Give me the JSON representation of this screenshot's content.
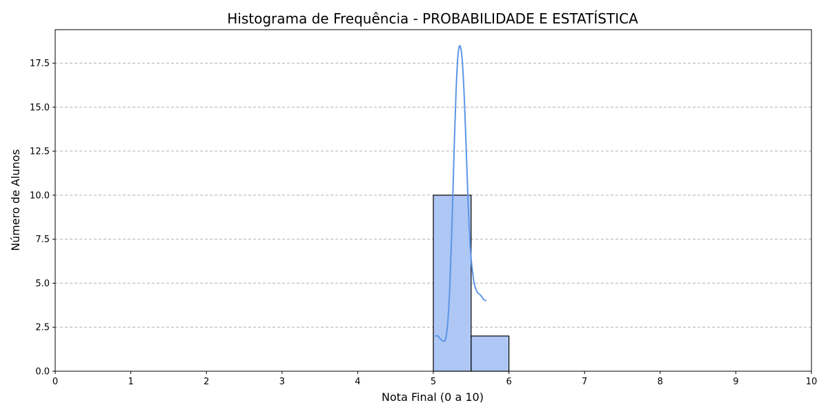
{
  "chart_data": {
    "type": "bar",
    "title": "Histograma de Frequência - PROBABILIDADE E ESTATÍSTICA",
    "xlabel": "Nota Final (0 a 10)",
    "ylabel": "Número de Alunos",
    "xlim": [
      0,
      10
    ],
    "ylim": [
      0,
      19.4
    ],
    "xticks": [
      "0",
      "1",
      "2",
      "3",
      "4",
      "5",
      "6",
      "7",
      "8",
      "9",
      "10"
    ],
    "yticks": [
      "0.0",
      "2.5",
      "5.0",
      "7.5",
      "10.0",
      "12.5",
      "15.0",
      "17.5"
    ],
    "grid": "y-dashed",
    "bins": [
      {
        "x0": 5.0,
        "x1": 5.5,
        "count": 10
      },
      {
        "x0": 5.5,
        "x1": 6.0,
        "count": 2
      }
    ],
    "kde": {
      "x": [
        5.02,
        5.06,
        5.1,
        5.14,
        5.16,
        5.18,
        5.2,
        5.22,
        5.24,
        5.26,
        5.28,
        5.3,
        5.32,
        5.34,
        5.36,
        5.38,
        5.4,
        5.42,
        5.44,
        5.46,
        5.48,
        5.5,
        5.52,
        5.54,
        5.56,
        5.58,
        5.6,
        5.63,
        5.66,
        5.7
      ],
      "y": [
        2.0,
        2.0,
        1.8,
        1.7,
        1.8,
        2.3,
        3.3,
        5.0,
        7.4,
        10.3,
        13.3,
        15.8,
        17.6,
        18.4,
        18.4,
        17.8,
        16.4,
        14.4,
        12.0,
        9.6,
        7.7,
        6.4,
        5.6,
        5.0,
        4.7,
        4.5,
        4.4,
        4.3,
        4.1,
        4.0
      ]
    },
    "colors": {
      "bar_fill": "#aec7f4",
      "bar_edge": "#000000",
      "kde_line": "#5b95e6",
      "grid": "#b0b0b0"
    }
  }
}
